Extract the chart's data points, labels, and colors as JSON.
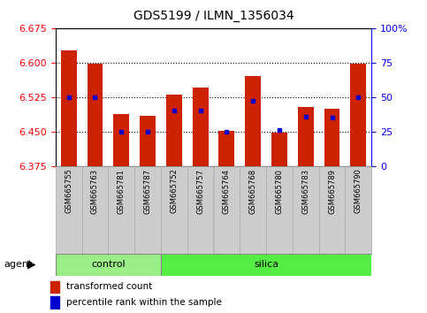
{
  "title": "GDS5199 / ILMN_1356034",
  "samples": [
    "GSM665755",
    "GSM665763",
    "GSM665781",
    "GSM665787",
    "GSM665752",
    "GSM665757",
    "GSM665764",
    "GSM665768",
    "GSM665780",
    "GSM665783",
    "GSM665789",
    "GSM665790"
  ],
  "transformed_count": [
    6.627,
    6.597,
    6.487,
    6.484,
    6.53,
    6.545,
    6.452,
    6.57,
    6.447,
    6.503,
    6.5,
    6.598
  ],
  "percentile_rank": [
    50,
    50,
    25,
    25,
    40,
    40,
    25,
    47,
    26,
    36,
    35,
    50
  ],
  "y_min": 6.375,
  "y_max": 6.675,
  "y_ticks": [
    6.375,
    6.45,
    6.525,
    6.6,
    6.675
  ],
  "y2_ticks": [
    0,
    25,
    50,
    75,
    100
  ],
  "y2_tick_labels": [
    "0",
    "25",
    "50",
    "75",
    "100%"
  ],
  "control_samples": 4,
  "control_label": "control",
  "silica_label": "silica",
  "agent_label": "agent",
  "bar_color": "#cc2200",
  "marker_color": "#0000cc",
  "control_bg": "#99ee88",
  "silica_bg": "#55ee44",
  "label_bg": "#cccccc",
  "legend_bar_label": "transformed count",
  "legend_marker_label": "percentile rank within the sample",
  "bar_width": 0.6,
  "grid_color": "#000000",
  "title_fontsize": 10,
  "tick_fontsize": 8,
  "sample_fontsize": 6,
  "agent_fontsize": 8,
  "legend_fontsize": 7.5
}
